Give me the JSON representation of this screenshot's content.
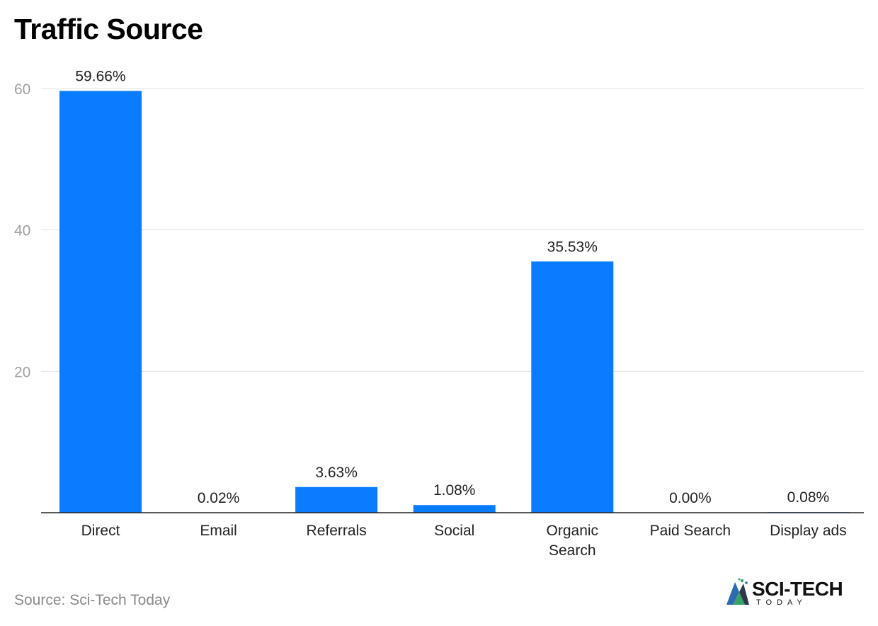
{
  "title": "Traffic Source",
  "source": "Source: Sci-Tech Today",
  "brand": {
    "name": "SCI-TECH",
    "tagline": "TODAY",
    "icon": "sci-tech-logo-icon"
  },
  "colors": {
    "bar": "#0a7cff",
    "grid": "#e0e0e0",
    "axis": "#222222",
    "tick_label": "#a0a0a0",
    "category_label": "#222222"
  },
  "chart_data": {
    "type": "bar",
    "categories": [
      [
        "Direct"
      ],
      [
        "Email"
      ],
      [
        "Referrals"
      ],
      [
        "Social"
      ],
      [
        "Organic",
        "Search"
      ],
      [
        "Paid Search"
      ],
      [
        "Display ads"
      ]
    ],
    "values": [
      59.66,
      0.02,
      3.63,
      1.08,
      35.53,
      0.0,
      0.08
    ],
    "data_labels": [
      "59.66%",
      "0.02%",
      "3.63%",
      "1.08%",
      "35.53%",
      "0.00%",
      "0.08%"
    ],
    "ylim": [
      0,
      60
    ],
    "yticks": [
      20,
      40,
      60
    ],
    "grid": true,
    "legend": "none",
    "xlabel": "",
    "ylabel": ""
  }
}
